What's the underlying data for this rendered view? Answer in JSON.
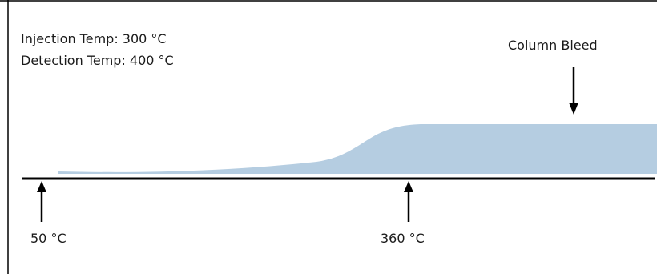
{
  "annotations": {
    "injection_temp": "Injection Temp: 300 °C",
    "detection_temp": "Detection Temp: 400 °C",
    "column_bleed": "Column Bleed"
  },
  "markers": {
    "start_temp": "50 °C",
    "mid_temp": "360 °C"
  },
  "colors": {
    "bleed_fill": "#b5cde1",
    "baseline": "#000000",
    "frame": "#000000"
  }
}
